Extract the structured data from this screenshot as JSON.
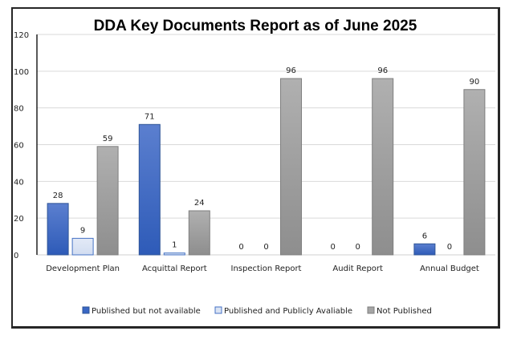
{
  "chart_data": {
    "type": "bar",
    "title": "DDA Key Documents Report as of June 2025",
    "xlabel": "",
    "ylabel": "",
    "ylim": [
      0,
      120
    ],
    "yticks": [
      0,
      20,
      40,
      60,
      80,
      100,
      120
    ],
    "grid": true,
    "legend_position": "bottom",
    "categories": [
      "Development Plan",
      "Acquittal Report",
      "Inspection Report",
      "Audit Report",
      "Annual Budget"
    ],
    "series": [
      {
        "name": "Published but not available",
        "values": [
          28,
          71,
          0,
          0,
          6
        ],
        "color": "#3A67C4",
        "border": "#2F5597"
      },
      {
        "name": "Published and Publicly Avaliable",
        "values": [
          9,
          1,
          0,
          0,
          0
        ],
        "color": "#DAE3F3",
        "border": "#4472C4"
      },
      {
        "name": "Not Published",
        "values": [
          59,
          24,
          96,
          96,
          90
        ],
        "color": "#A5A5A5",
        "border": "#7F7F7F"
      }
    ]
  }
}
